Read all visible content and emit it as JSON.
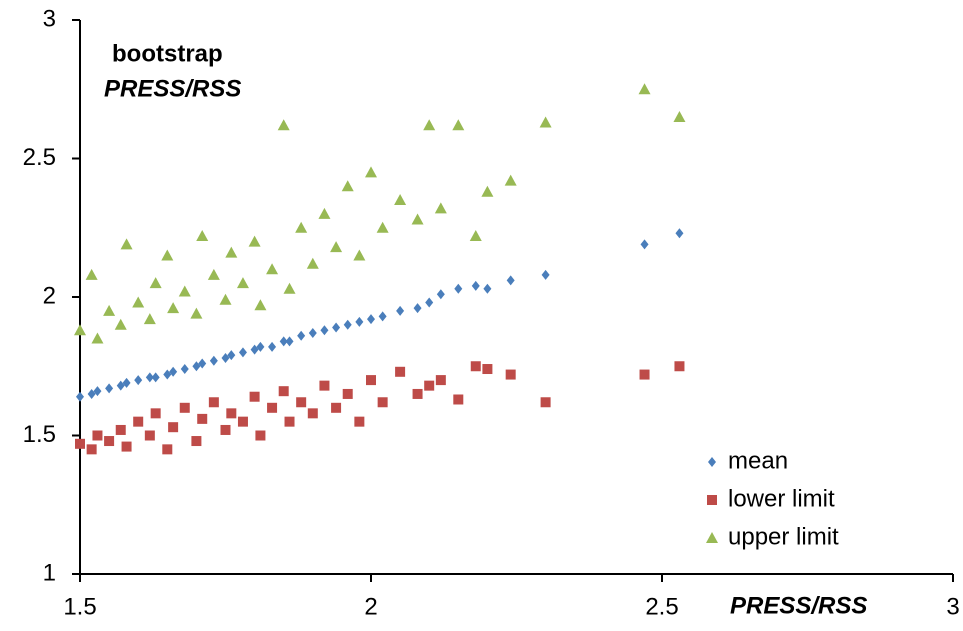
{
  "chart_data": {
    "type": "scatter",
    "ylabel_lines": [
      "bootstrap",
      "PRESS/RSS"
    ],
    "xlabel": "PRESS/RSS",
    "xlim": [
      1.5,
      3
    ],
    "xticks": [
      1.5,
      2,
      2.5,
      3
    ],
    "ylim": [
      1,
      3
    ],
    "yticks": [
      1,
      1.5,
      2,
      2.5,
      3
    ],
    "grid": false,
    "legend": "lower right",
    "x": [
      1.5,
      1.52,
      1.53,
      1.55,
      1.57,
      1.58,
      1.6,
      1.62,
      1.63,
      1.65,
      1.66,
      1.68,
      1.7,
      1.71,
      1.73,
      1.75,
      1.76,
      1.78,
      1.8,
      1.81,
      1.83,
      1.85,
      1.86,
      1.88,
      1.9,
      1.92,
      1.94,
      1.96,
      1.98,
      2.0,
      2.02,
      2.05,
      2.08,
      2.1,
      2.12,
      2.15,
      2.18,
      2.2,
      2.24,
      2.3,
      2.47,
      2.53
    ],
    "series": [
      {
        "name": "mean",
        "color": "#4a7ebb",
        "marker": "diamond",
        "values": [
          1.64,
          1.65,
          1.66,
          1.67,
          1.68,
          1.69,
          1.7,
          1.71,
          1.71,
          1.72,
          1.73,
          1.74,
          1.75,
          1.76,
          1.77,
          1.78,
          1.79,
          1.8,
          1.81,
          1.82,
          1.82,
          1.84,
          1.84,
          1.86,
          1.87,
          1.88,
          1.89,
          1.9,
          1.91,
          1.92,
          1.93,
          1.95,
          1.96,
          1.98,
          2.01,
          2.03,
          2.04,
          2.03,
          2.06,
          2.08,
          2.19,
          2.23
        ]
      },
      {
        "name": "lower limit",
        "color": "#be4b48",
        "marker": "square",
        "values": [
          1.47,
          1.45,
          1.5,
          1.48,
          1.52,
          1.46,
          1.55,
          1.5,
          1.58,
          1.45,
          1.53,
          1.6,
          1.48,
          1.56,
          1.62,
          1.52,
          1.58,
          1.55,
          1.64,
          1.5,
          1.6,
          1.66,
          1.55,
          1.62,
          1.58,
          1.68,
          1.6,
          1.65,
          1.55,
          1.7,
          1.62,
          1.73,
          1.65,
          1.68,
          1.7,
          1.63,
          1.75,
          1.74,
          1.72,
          1.62,
          1.72,
          1.75
        ]
      },
      {
        "name": "upper limit",
        "color": "#98b954",
        "marker": "triangle",
        "values": [
          1.88,
          2.08,
          1.85,
          1.95,
          1.9,
          2.19,
          1.98,
          1.92,
          2.05,
          2.15,
          1.96,
          2.02,
          1.94,
          2.22,
          2.08,
          1.99,
          2.16,
          2.05,
          2.2,
          1.97,
          2.1,
          2.62,
          2.03,
          2.25,
          2.12,
          2.3,
          2.18,
          2.4,
          2.15,
          2.45,
          2.25,
          2.35,
          2.28,
          2.62,
          2.32,
          2.62,
          2.22,
          2.38,
          2.42,
          2.63,
          2.75,
          2.65
        ]
      }
    ]
  }
}
